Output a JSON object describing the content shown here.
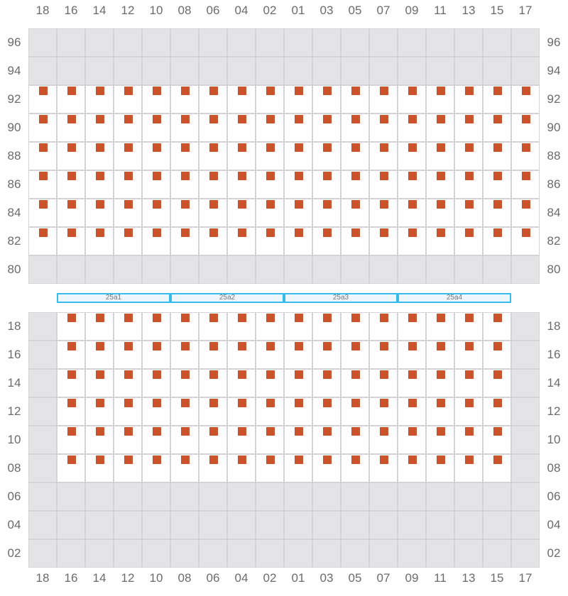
{
  "colors": {
    "occupied": "#cc5229",
    "inactive": "#e4e4e6",
    "active": "#ffffff",
    "bar_border": "#3bbcee"
  },
  "columns": [
    "18",
    "16",
    "14",
    "12",
    "10",
    "08",
    "06",
    "04",
    "02",
    "01",
    "03",
    "05",
    "07",
    "09",
    "11",
    "13",
    "15",
    "17"
  ],
  "top_section": {
    "rows": [
      "96",
      "94",
      "92",
      "90",
      "88",
      "86",
      "84",
      "82",
      "80"
    ],
    "active_rows": [
      "92",
      "90",
      "88",
      "86",
      "84",
      "82"
    ],
    "active_columns": [
      "18",
      "16",
      "14",
      "12",
      "10",
      "08",
      "06",
      "04",
      "02",
      "01",
      "03",
      "05",
      "07",
      "09",
      "11",
      "13",
      "15",
      "17"
    ]
  },
  "bottom_section": {
    "rows": [
      "18",
      "16",
      "14",
      "12",
      "10",
      "08",
      "06",
      "04",
      "02"
    ],
    "active_rows": [
      "18",
      "16",
      "14",
      "12",
      "10",
      "08"
    ],
    "active_columns": [
      "16",
      "14",
      "12",
      "10",
      "08",
      "06",
      "04",
      "02",
      "01",
      "03",
      "05",
      "07",
      "09",
      "11",
      "13",
      "15"
    ]
  },
  "bars": [
    "25a1",
    "25a2",
    "25a3",
    "25a4"
  ]
}
